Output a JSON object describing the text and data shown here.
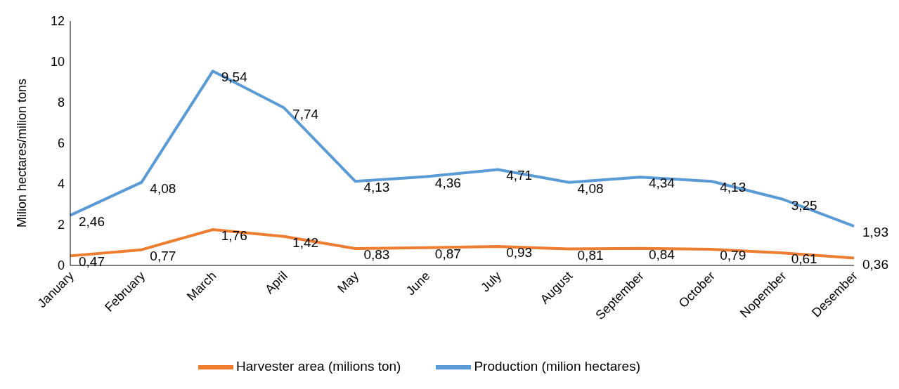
{
  "chart_data": {
    "type": "line",
    "ylabel": "Milion hectares/milion tons",
    "categories": [
      "January",
      "February",
      "March",
      "April",
      "May",
      "June",
      "July",
      "August",
      "September",
      "October",
      "Nopember",
      "Desember"
    ],
    "series": [
      {
        "name": "Production (milion hectares)",
        "color": "#5b9bd5",
        "values": [
          2.46,
          4.08,
          9.54,
          7.74,
          4.13,
          4.36,
          4.71,
          4.08,
          4.34,
          4.13,
          3.25,
          1.93
        ],
        "value_labels": [
          "2,46",
          "4,08",
          "9,54",
          "7,74",
          "4,13",
          "4,36",
          "4,71",
          "4,08",
          "4,34",
          "4,13",
          "3,25",
          "1,93"
        ]
      },
      {
        "name": "Harvester area (milions ton)",
        "color": "#ed7d31",
        "values": [
          0.47,
          0.77,
          1.76,
          1.42,
          0.83,
          0.87,
          0.93,
          0.81,
          0.84,
          0.79,
          0.61,
          0.36
        ],
        "value_labels": [
          "0,47",
          "0,77",
          "1,76",
          "1,42",
          "0,83",
          "0,87",
          "0,93",
          "0,81",
          "0,84",
          "0,79",
          "0,61",
          "0,36"
        ]
      }
    ],
    "ylim": [
      0,
      12
    ],
    "yticks": [
      0,
      2,
      4,
      6,
      8,
      10,
      12
    ],
    "legend": "bottom",
    "line_style": "solid"
  }
}
